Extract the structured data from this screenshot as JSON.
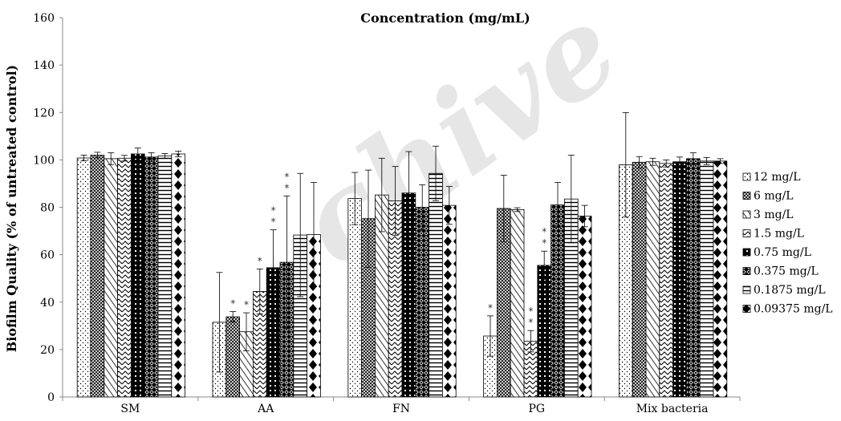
{
  "chart_data": {
    "type": "bar",
    "title": "Concentration (mg/mL)",
    "ylabel": "Biofilm Quality (% of untreated control)",
    "xlabel": "",
    "ylim": [
      0,
      160
    ],
    "yticks": [
      0,
      20,
      40,
      60,
      80,
      100,
      120,
      140,
      160
    ],
    "grid": false,
    "legend_position": "right",
    "categories": [
      "SM",
      "AA",
      "FN",
      "PG",
      "Mix bacteria"
    ],
    "series": [
      {
        "name": "12 mg/L",
        "pattern": "dots",
        "values": [
          100.8,
          31.5,
          83.7,
          25.7,
          97.9
        ],
        "errors": [
          1.2,
          21,
          11,
          8.5,
          22
        ],
        "significance": [
          "",
          "",
          "",
          "*",
          ""
        ]
      },
      {
        "name": "6 mg/L",
        "pattern": "crosshatch",
        "values": [
          102,
          33.8,
          75.2,
          79.5,
          99
        ],
        "errors": [
          1.2,
          2.2,
          20.5,
          14,
          2.4
        ],
        "significance": [
          "",
          "*",
          "",
          "",
          ""
        ]
      },
      {
        "name": "3 mg/L",
        "pattern": "diag-right",
        "values": [
          100.5,
          27.5,
          85.2,
          79,
          99.2
        ],
        "errors": [
          2.5,
          8,
          15.5,
          0.8,
          1.5
        ],
        "significance": [
          "",
          "*",
          "",
          "",
          ""
        ]
      },
      {
        "name": "1.5 mg/L",
        "pattern": "zigzag",
        "values": [
          100.7,
          44.5,
          82.7,
          23.5,
          98.5
        ],
        "errors": [
          1.2,
          9.5,
          14.5,
          4.5,
          1.5
        ],
        "significance": [
          "",
          "*",
          "",
          "* *",
          ""
        ]
      },
      {
        "name": "0.75 mg/L",
        "pattern": "black-check",
        "values": [
          102.5,
          54.5,
          86,
          55.5,
          99.2
        ],
        "errors": [
          2.5,
          16,
          17.5,
          6,
          2
        ],
        "significance": [
          "",
          "* *",
          "",
          "* *",
          ""
        ]
      },
      {
        "name": "0.375 mg/L",
        "pattern": "black-diamond-grid",
        "values": [
          101.2,
          56.8,
          80,
          81,
          100.5
        ],
        "errors": [
          1.8,
          28,
          9.5,
          9.5,
          2.5
        ],
        "significance": [
          "",
          "* *",
          "",
          "",
          ""
        ]
      },
      {
        "name": "0.1875 mg/L",
        "pattern": "horizontal",
        "values": [
          101.7,
          68.3,
          94.3,
          83.5,
          99.5
        ],
        "errors": [
          1,
          26,
          11.5,
          18.5,
          1.5
        ],
        "significance": [
          "",
          "",
          "",
          "",
          ""
        ]
      },
      {
        "name": "0.09375 mg/L",
        "pattern": "black-diamonds",
        "values": [
          102.5,
          68.5,
          80.8,
          76.3,
          99.5
        ],
        "errors": [
          1.2,
          22,
          8,
          4.5,
          1
        ],
        "significance": [
          "",
          "",
          "",
          "",
          ""
        ]
      }
    ]
  },
  "watermark": "chive"
}
